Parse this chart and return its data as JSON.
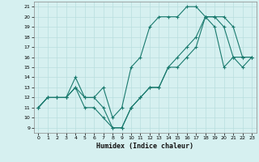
{
  "title": "",
  "xlabel": "Humidex (Indice chaleur)",
  "ylabel": "",
  "background_color": "#d6f0f0",
  "grid_color": "#b8dede",
  "line_color": "#1a7a6e",
  "xlim": [
    -0.5,
    23.5
  ],
  "ylim": [
    8.5,
    21.5
  ],
  "xticks": [
    0,
    1,
    2,
    3,
    4,
    5,
    6,
    7,
    8,
    9,
    10,
    11,
    12,
    13,
    14,
    15,
    16,
    17,
    18,
    19,
    20,
    21,
    22,
    23
  ],
  "yticks": [
    9,
    10,
    11,
    12,
    13,
    14,
    15,
    16,
    17,
    18,
    19,
    20,
    21
  ],
  "series": [
    {
      "x": [
        0,
        1,
        2,
        3,
        4,
        5,
        6,
        7,
        8,
        9,
        10,
        11,
        12,
        13,
        14,
        15,
        16,
        17,
        18,
        19,
        20,
        21,
        22,
        23
      ],
      "y": [
        11,
        12,
        12,
        12,
        14,
        12,
        12,
        13,
        10,
        11,
        15,
        16,
        19,
        20,
        20,
        20,
        21,
        21,
        20,
        19,
        15,
        16,
        15,
        16
      ]
    },
    {
      "x": [
        0,
        1,
        2,
        3,
        4,
        5,
        6,
        7,
        8,
        9,
        10,
        11,
        12,
        13,
        14,
        15,
        16,
        17,
        18,
        19,
        20,
        21,
        22,
        23
      ],
      "y": [
        11,
        12,
        12,
        12,
        13,
        11,
        11,
        10,
        9,
        9,
        11,
        12,
        13,
        13,
        15,
        15,
        16,
        17,
        20,
        20,
        19,
        16,
        16,
        16
      ]
    },
    {
      "x": [
        0,
        1,
        2,
        3,
        4,
        5,
        6,
        7,
        8,
        9,
        10,
        11,
        12,
        13,
        14,
        15,
        16,
        17,
        18,
        19,
        20,
        21,
        22,
        23
      ],
      "y": [
        11,
        12,
        12,
        12,
        13,
        12,
        12,
        11,
        9,
        9,
        11,
        12,
        13,
        13,
        15,
        16,
        17,
        18,
        20,
        20,
        20,
        19,
        16,
        16
      ]
    }
  ]
}
